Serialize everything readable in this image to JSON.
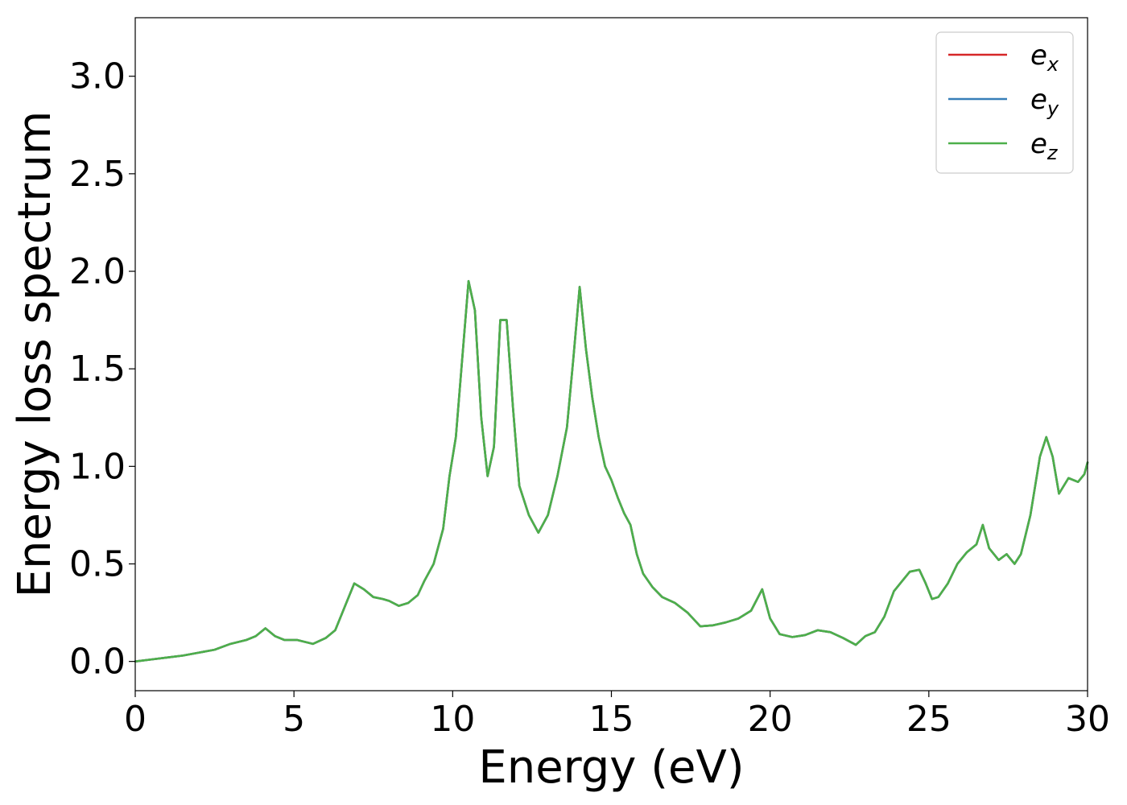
{
  "chart_data": {
    "type": "line",
    "title": "",
    "xlabel": "Energy (eV)",
    "ylabel": "Energy loss spectrum",
    "xlim": [
      0,
      30
    ],
    "ylim": [
      -0.15,
      3.3
    ],
    "xticks": [
      0,
      5,
      10,
      15,
      20,
      25,
      30
    ],
    "xtick_labels": [
      "0",
      "5",
      "10",
      "15",
      "20",
      "25",
      "30"
    ],
    "yticks": [
      0.0,
      0.5,
      1.0,
      1.5,
      2.0,
      2.5,
      3.0
    ],
    "ytick_labels": [
      "0.0",
      "0.5",
      "1.0",
      "1.5",
      "2.0",
      "2.5",
      "3.0"
    ],
    "grid": false,
    "legend_position": "top-right",
    "x": [
      0,
      0.5,
      1,
      1.5,
      2,
      2.5,
      3,
      3.5,
      3.8,
      4.1,
      4.4,
      4.7,
      5.1,
      5.6,
      6.0,
      6.3,
      6.6,
      6.9,
      7.2,
      7.5,
      7.8,
      8.0,
      8.3,
      8.6,
      8.9,
      9.1,
      9.4,
      9.7,
      9.9,
      10.1,
      10.3,
      10.5,
      10.7,
      10.9,
      11.1,
      11.3,
      11.5,
      11.7,
      11.9,
      12.1,
      12.4,
      12.7,
      13.0,
      13.3,
      13.6,
      13.8,
      14.0,
      14.2,
      14.4,
      14.6,
      14.8,
      15.0,
      15.2,
      15.4,
      15.6,
      15.8,
      16.0,
      16.3,
      16.6,
      17.0,
      17.4,
      17.8,
      18.2,
      18.6,
      19.0,
      19.4,
      19.75,
      20.0,
      20.3,
      20.7,
      21.1,
      21.5,
      21.9,
      22.3,
      22.7,
      23.0,
      23.3,
      23.6,
      23.9,
      24.1,
      24.4,
      24.7,
      24.9,
      25.1,
      25.3,
      25.6,
      25.9,
      26.2,
      26.5,
      26.7,
      26.9,
      27.2,
      27.45,
      27.7,
      27.9,
      28.2,
      28.5,
      28.7,
      28.9,
      29.1,
      29.4,
      29.7,
      29.9,
      30.0
    ],
    "series": [
      {
        "name": "e_x",
        "label_base": "e",
        "label_sub": "x",
        "color": "#d62728",
        "y": [
          0.0,
          0.01,
          0.02,
          0.03,
          0.045,
          0.06,
          0.09,
          0.11,
          0.13,
          0.17,
          0.13,
          0.11,
          0.11,
          0.09,
          0.12,
          0.16,
          0.28,
          0.4,
          0.37,
          0.33,
          0.32,
          0.31,
          0.285,
          0.3,
          0.34,
          0.41,
          0.5,
          0.68,
          0.95,
          1.15,
          1.55,
          1.95,
          1.8,
          1.25,
          0.95,
          1.1,
          1.75,
          1.75,
          1.3,
          0.9,
          0.75,
          0.66,
          0.75,
          0.95,
          1.2,
          1.55,
          1.92,
          1.6,
          1.35,
          1.15,
          1.0,
          0.93,
          0.84,
          0.76,
          0.7,
          0.55,
          0.45,
          0.38,
          0.33,
          0.3,
          0.25,
          0.18,
          0.185,
          0.2,
          0.22,
          0.26,
          0.37,
          0.22,
          0.14,
          0.125,
          0.135,
          0.16,
          0.15,
          0.12,
          0.085,
          0.13,
          0.15,
          0.23,
          0.36,
          0.4,
          0.46,
          0.47,
          0.4,
          0.32,
          0.33,
          0.4,
          0.5,
          0.56,
          0.6,
          0.7,
          0.58,
          0.52,
          0.55,
          0.5,
          0.55,
          0.75,
          1.05,
          1.15,
          1.05,
          0.86,
          0.94,
          0.92,
          0.96,
          1.02
        ]
      },
      {
        "name": "e_y",
        "label_base": "e",
        "label_sub": "y",
        "color": "#377eb8",
        "y": [
          0.0,
          0.01,
          0.02,
          0.03,
          0.045,
          0.06,
          0.09,
          0.11,
          0.13,
          0.17,
          0.13,
          0.11,
          0.11,
          0.09,
          0.12,
          0.16,
          0.28,
          0.4,
          0.37,
          0.33,
          0.32,
          0.31,
          0.285,
          0.3,
          0.34,
          0.41,
          0.5,
          0.68,
          0.95,
          1.15,
          1.55,
          1.95,
          1.8,
          1.25,
          0.95,
          1.1,
          1.75,
          1.75,
          1.3,
          0.9,
          0.75,
          0.66,
          0.75,
          0.95,
          1.2,
          1.55,
          1.92,
          1.6,
          1.35,
          1.15,
          1.0,
          0.93,
          0.84,
          0.76,
          0.7,
          0.55,
          0.45,
          0.38,
          0.33,
          0.3,
          0.25,
          0.18,
          0.185,
          0.2,
          0.22,
          0.26,
          0.37,
          0.22,
          0.14,
          0.125,
          0.135,
          0.16,
          0.15,
          0.12,
          0.085,
          0.13,
          0.15,
          0.23,
          0.36,
          0.4,
          0.46,
          0.47,
          0.4,
          0.32,
          0.33,
          0.4,
          0.5,
          0.56,
          0.6,
          0.7,
          0.58,
          0.52,
          0.55,
          0.5,
          0.55,
          0.75,
          1.05,
          1.15,
          1.05,
          0.86,
          0.94,
          0.92,
          0.96,
          1.02
        ]
      },
      {
        "name": "e_z",
        "label_base": "e",
        "label_sub": "z",
        "color": "#4daf4a",
        "y": [
          0.0,
          0.01,
          0.02,
          0.03,
          0.045,
          0.06,
          0.09,
          0.11,
          0.13,
          0.17,
          0.13,
          0.11,
          0.11,
          0.09,
          0.12,
          0.16,
          0.28,
          0.4,
          0.37,
          0.33,
          0.32,
          0.31,
          0.285,
          0.3,
          0.34,
          0.41,
          0.5,
          0.68,
          0.95,
          1.15,
          1.55,
          1.95,
          1.8,
          1.25,
          0.95,
          1.1,
          1.75,
          1.75,
          1.3,
          0.9,
          0.75,
          0.66,
          0.75,
          0.95,
          1.2,
          1.55,
          1.92,
          1.6,
          1.35,
          1.15,
          1.0,
          0.93,
          0.84,
          0.76,
          0.7,
          0.55,
          0.45,
          0.38,
          0.33,
          0.3,
          0.25,
          0.18,
          0.185,
          0.2,
          0.22,
          0.26,
          0.37,
          0.22,
          0.14,
          0.125,
          0.135,
          0.16,
          0.15,
          0.12,
          0.085,
          0.13,
          0.15,
          0.23,
          0.36,
          0.4,
          0.46,
          0.47,
          0.4,
          0.32,
          0.33,
          0.4,
          0.5,
          0.56,
          0.6,
          0.7,
          0.58,
          0.52,
          0.55,
          0.5,
          0.55,
          0.75,
          1.05,
          1.15,
          1.05,
          0.86,
          0.94,
          0.92,
          0.96,
          1.02
        ]
      }
    ]
  }
}
